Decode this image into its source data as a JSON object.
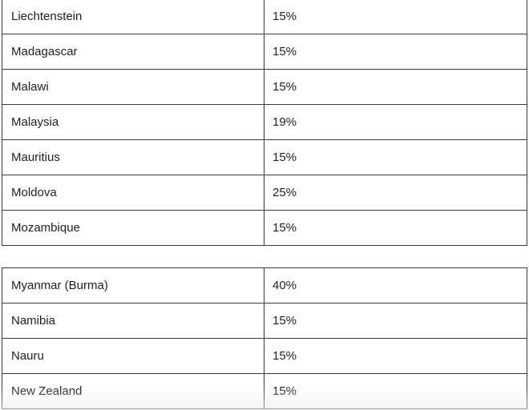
{
  "tables": [
    {
      "rows": [
        {
          "country": "Liechtenstein",
          "rate": "15%"
        },
        {
          "country": "Madagascar",
          "rate": "15%"
        },
        {
          "country": "Malawi",
          "rate": "15%"
        },
        {
          "country": "Malaysia",
          "rate": "19%"
        },
        {
          "country": "Mauritius",
          "rate": "15%"
        },
        {
          "country": "Moldova",
          "rate": "25%"
        },
        {
          "country": "Mozambique",
          "rate": "15%"
        }
      ]
    },
    {
      "rows": [
        {
          "country": "Myanmar (Burma)",
          "rate": "40%"
        },
        {
          "country": "Namibia",
          "rate": "15%"
        },
        {
          "country": "Nauru",
          "rate": "15%"
        },
        {
          "country": "New Zealand",
          "rate": "15%"
        }
      ]
    }
  ]
}
